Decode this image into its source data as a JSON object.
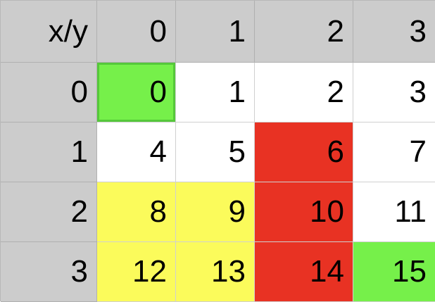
{
  "corner_label": "x/y",
  "column_headers": [
    "0",
    "1",
    "2",
    "3"
  ],
  "row_headers": [
    "0",
    "1",
    "2",
    "3"
  ],
  "colors": {
    "header_gray": "#cccccc",
    "green": "#76f04a",
    "red": "#e83223",
    "yellow": "#fbfb5b",
    "white": "#ffffff"
  },
  "rows": [
    [
      {
        "value": "0",
        "fill": "green"
      },
      {
        "value": "1",
        "fill": "white"
      },
      {
        "value": "2",
        "fill": "white"
      },
      {
        "value": "3",
        "fill": "white"
      }
    ],
    [
      {
        "value": "4",
        "fill": "white"
      },
      {
        "value": "5",
        "fill": "white"
      },
      {
        "value": "6",
        "fill": "red"
      },
      {
        "value": "7",
        "fill": "white"
      }
    ],
    [
      {
        "value": "8",
        "fill": "yellow"
      },
      {
        "value": "9",
        "fill": "yellow"
      },
      {
        "value": "10",
        "fill": "red"
      },
      {
        "value": "11",
        "fill": "white"
      }
    ],
    [
      {
        "value": "12",
        "fill": "yellow"
      },
      {
        "value": "13",
        "fill": "yellow"
      },
      {
        "value": "14",
        "fill": "red"
      },
      {
        "value": "15",
        "fill": "green"
      }
    ]
  ]
}
